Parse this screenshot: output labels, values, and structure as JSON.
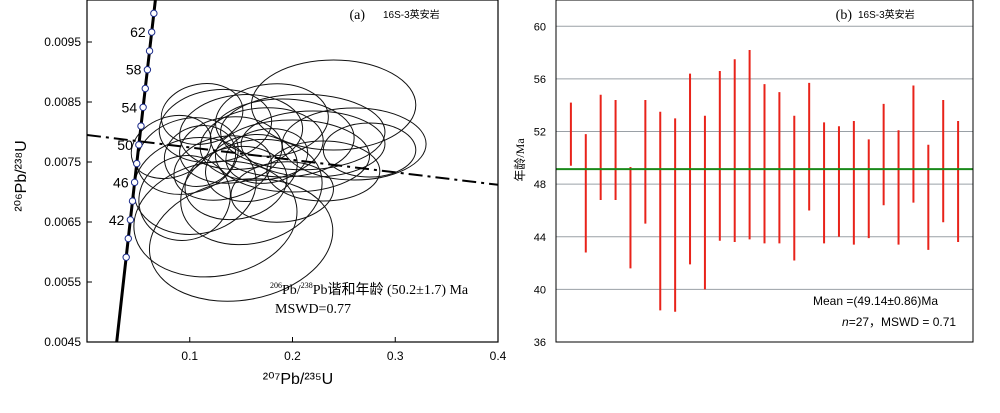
{
  "chart_data": [
    {
      "type": "scatter",
      "panel_label": "(a)",
      "sample_label": "16S-3英安岩",
      "xlabel": "²⁰⁷Pb/²³⁵U",
      "ylabel": "²⁰⁶Pb/²³⁸U",
      "xlim": [
        0.0,
        0.4
      ],
      "ylim": [
        0.0045,
        0.0102
      ],
      "x_ticks": [
        "0.1",
        "0.2",
        "0.3",
        "0.4"
      ],
      "y_ticks": [
        "0.0045",
        "0.0055",
        "0.0065",
        "0.0075",
        "0.0085",
        "0.0095"
      ],
      "annotation": {
        "line1_sup1": "206",
        "line1_b": "Pb/",
        "line1_sup2": "238",
        "line1_c": "Pb谐和年龄 (50.2±1.7) Ma",
        "line2": "MSWD=0.77"
      },
      "concordia_ages": [
        38,
        40,
        42,
        44,
        46,
        48,
        50,
        52,
        54,
        56,
        58,
        60,
        62,
        64
      ],
      "concordia_labels": [
        "42",
        "46",
        "50",
        "54",
        "58",
        "62"
      ],
      "discordia_line": {
        "x": [
          0.0,
          0.4
        ],
        "y": [
          0.00795,
          0.00712
        ]
      },
      "ellipses": [
        {
          "x": 0.082,
          "y": 0.00775,
          "rx": 0.04,
          "ry": 0.0005,
          "rot": -20
        },
        {
          "x": 0.098,
          "y": 0.0076,
          "rx": 0.05,
          "ry": 0.00062,
          "rot": -15
        },
        {
          "x": 0.105,
          "y": 0.0071,
          "rx": 0.06,
          "ry": 0.0008,
          "rot": -10
        },
        {
          "x": 0.095,
          "y": 0.0069,
          "rx": 0.045,
          "ry": 0.0007,
          "rot": -20
        },
        {
          "x": 0.112,
          "y": 0.0083,
          "rx": 0.04,
          "ry": 0.0005,
          "rot": -10
        },
        {
          "x": 0.125,
          "y": 0.0081,
          "rx": 0.055,
          "ry": 0.0006,
          "rot": -8
        },
        {
          "x": 0.14,
          "y": 0.0077,
          "rx": 0.05,
          "ry": 0.00055,
          "rot": -5
        },
        {
          "x": 0.15,
          "y": 0.008,
          "rx": 0.06,
          "ry": 0.00062,
          "rot": -5
        },
        {
          "x": 0.132,
          "y": 0.0074,
          "rx": 0.048,
          "ry": 0.00052,
          "rot": -12
        },
        {
          "x": 0.17,
          "y": 0.0078,
          "rx": 0.06,
          "ry": 0.0006,
          "rot": -5
        },
        {
          "x": 0.18,
          "y": 0.0082,
          "rx": 0.055,
          "ry": 0.0006,
          "rot": -5
        },
        {
          "x": 0.19,
          "y": 0.0079,
          "rx": 0.07,
          "ry": 0.00065,
          "rot": 0
        },
        {
          "x": 0.2,
          "y": 0.0076,
          "rx": 0.075,
          "ry": 0.0006,
          "rot": 0
        },
        {
          "x": 0.21,
          "y": 0.008,
          "rx": 0.08,
          "ry": 0.00063,
          "rot": 0
        },
        {
          "x": 0.22,
          "y": 0.0078,
          "rx": 0.07,
          "ry": 0.00055,
          "rot": 0
        },
        {
          "x": 0.24,
          "y": 0.00845,
          "rx": 0.08,
          "ry": 0.00075,
          "rot": 0
        },
        {
          "x": 0.26,
          "y": 0.0078,
          "rx": 0.07,
          "ry": 0.0006,
          "rot": 0
        },
        {
          "x": 0.275,
          "y": 0.0077,
          "rx": 0.045,
          "ry": 0.00045,
          "rot": 0
        },
        {
          "x": 0.16,
          "y": 0.0074,
          "rx": 0.045,
          "ry": 0.00055,
          "rot": -10
        },
        {
          "x": 0.145,
          "y": 0.00715,
          "rx": 0.05,
          "ry": 0.0006,
          "rot": -10
        },
        {
          "x": 0.16,
          "y": 0.007,
          "rx": 0.07,
          "ry": 0.00085,
          "rot": -15
        },
        {
          "x": 0.125,
          "y": 0.00655,
          "rx": 0.08,
          "ry": 0.00095,
          "rot": -10
        },
        {
          "x": 0.15,
          "y": 0.0062,
          "rx": 0.09,
          "ry": 0.001,
          "rot": -10
        },
        {
          "x": 0.175,
          "y": 0.0076,
          "rx": 0.04,
          "ry": 0.00045,
          "rot": -8
        },
        {
          "x": 0.11,
          "y": 0.0076,
          "rx": 0.035,
          "ry": 0.0005,
          "rot": -15
        },
        {
          "x": 0.19,
          "y": 0.007,
          "rx": 0.05,
          "ry": 0.0005,
          "rot": -5
        },
        {
          "x": 0.23,
          "y": 0.00735,
          "rx": 0.055,
          "ry": 0.0005,
          "rot": 0
        }
      ]
    },
    {
      "type": "bar",
      "panel_label": "(b)",
      "sample_label": "16S-3英安岩",
      "xlabel": "",
      "ylabel": "年龄/Ma",
      "ylim": [
        36,
        62
      ],
      "y_ticks": [
        "36",
        "40",
        "44",
        "48",
        "52",
        "56",
        "60"
      ],
      "mean_line": 49.14,
      "mean_text_a": "Mean =",
      "mean_text_b": "(49.14±0.86)",
      "mean_text_c": "Ma",
      "stat_n_label": "n",
      "stat_rest": "=27，MSWD = 0.71",
      "bar_color": "#e8231a",
      "mean_color": "#1a8a1a",
      "bars": [
        {
          "low": 49.4,
          "high": 54.2
        },
        {
          "low": 42.8,
          "high": 51.8
        },
        {
          "low": 46.8,
          "high": 54.8
        },
        {
          "low": 46.8,
          "high": 54.4
        },
        {
          "low": 41.6,
          "high": 49.3
        },
        {
          "low": 45.0,
          "high": 54.4
        },
        {
          "low": 38.4,
          "high": 53.5
        },
        {
          "low": 38.3,
          "high": 53.0
        },
        {
          "low": 41.9,
          "high": 56.4
        },
        {
          "low": 40.0,
          "high": 53.2
        },
        {
          "low": 43.7,
          "high": 56.6
        },
        {
          "low": 43.6,
          "high": 57.5
        },
        {
          "low": 43.8,
          "high": 58.2
        },
        {
          "low": 43.5,
          "high": 55.6
        },
        {
          "low": 43.5,
          "high": 55.0
        },
        {
          "low": 42.2,
          "high": 53.2
        },
        {
          "low": 46.0,
          "high": 55.7
        },
        {
          "low": 43.5,
          "high": 52.7
        },
        {
          "low": 44.0,
          "high": 52.4
        },
        {
          "low": 43.4,
          "high": 52.8
        },
        {
          "low": 43.9,
          "high": 51.4
        },
        {
          "low": 46.4,
          "high": 54.1
        },
        {
          "low": 43.4,
          "high": 52.1
        },
        {
          "low": 46.6,
          "high": 55.5
        },
        {
          "low": 43.0,
          "high": 51.0
        },
        {
          "low": 45.1,
          "high": 54.4
        },
        {
          "low": 43.6,
          "high": 52.8
        }
      ]
    }
  ]
}
